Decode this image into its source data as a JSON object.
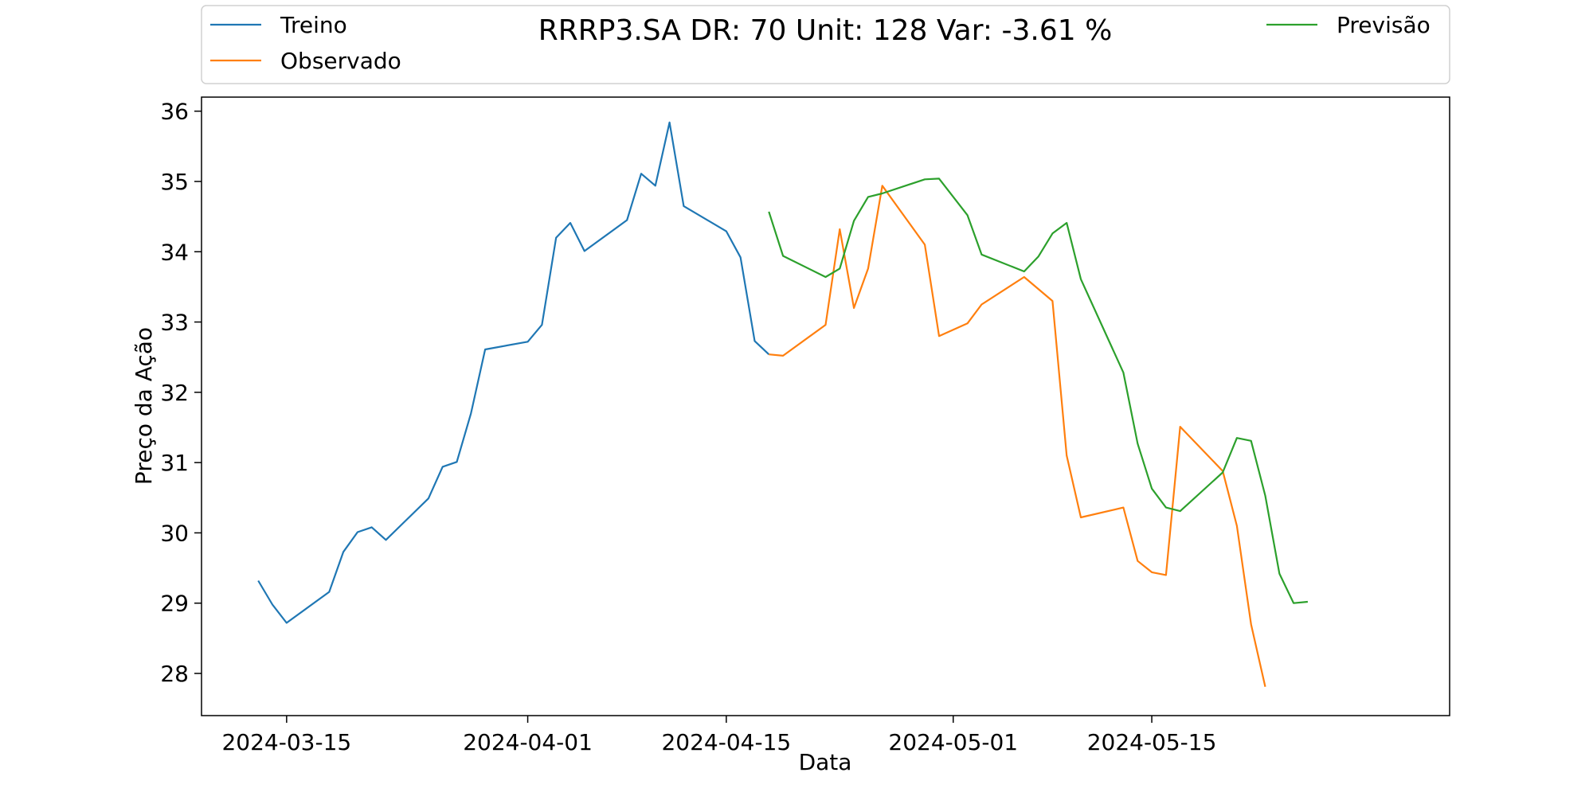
{
  "chart_data": {
    "type": "line",
    "title": "RRRP3.SA DR: 70 Unit: 128 Var: -3.61 %",
    "xlabel": "Data",
    "ylabel": "Preço da Ação",
    "xlim": [
      "2024-03-09",
      "2024-06-05"
    ],
    "ylim": [
      27.4,
      36.2
    ],
    "x_ticks": [
      "2024-03-15",
      "2024-04-01",
      "2024-04-15",
      "2024-05-01",
      "2024-05-15"
    ],
    "y_ticks": [
      28,
      29,
      30,
      31,
      32,
      33,
      34,
      35,
      36
    ],
    "grid": false,
    "legend_position": "top",
    "series": [
      {
        "name": "Treino",
        "color": "#1f77b4",
        "points": [
          [
            "2024-03-13",
            29.32
          ],
          [
            "2024-03-14",
            28.98
          ],
          [
            "2024-03-15",
            28.72
          ],
          [
            "2024-03-18",
            29.16
          ],
          [
            "2024-03-19",
            29.73
          ],
          [
            "2024-03-20",
            30.01
          ],
          [
            "2024-03-21",
            30.08
          ],
          [
            "2024-03-22",
            29.9
          ],
          [
            "2024-03-25",
            30.49
          ],
          [
            "2024-03-26",
            30.94
          ],
          [
            "2024-03-27",
            31.01
          ],
          [
            "2024-03-28",
            31.7
          ],
          [
            "2024-03-29",
            32.61
          ],
          [
            "2024-04-01",
            32.72
          ],
          [
            "2024-04-02",
            32.96
          ],
          [
            "2024-04-03",
            34.2
          ],
          [
            "2024-04-04",
            34.41
          ],
          [
            "2024-04-05",
            34.01
          ],
          [
            "2024-04-08",
            34.45
          ],
          [
            "2024-04-09",
            35.11
          ],
          [
            "2024-04-10",
            34.94
          ],
          [
            "2024-04-11",
            35.84
          ],
          [
            "2024-04-12",
            34.65
          ],
          [
            "2024-04-15",
            34.29
          ],
          [
            "2024-04-16",
            33.92
          ],
          [
            "2024-04-17",
            32.73
          ],
          [
            "2024-04-18",
            32.54
          ]
        ]
      },
      {
        "name": "Observado",
        "color": "#ff7f0e",
        "points": [
          [
            "2024-04-18",
            32.54
          ],
          [
            "2024-04-19",
            32.52
          ],
          [
            "2024-04-22",
            32.96
          ],
          [
            "2024-04-23",
            34.32
          ],
          [
            "2024-04-24",
            33.2
          ],
          [
            "2024-04-25",
            33.76
          ],
          [
            "2024-04-26",
            34.94
          ],
          [
            "2024-04-29",
            34.1
          ],
          [
            "2024-04-30",
            32.8
          ],
          [
            "2024-05-02",
            32.98
          ],
          [
            "2024-05-03",
            33.25
          ],
          [
            "2024-05-06",
            33.64
          ],
          [
            "2024-05-08",
            33.3
          ],
          [
            "2024-05-09",
            31.1
          ],
          [
            "2024-05-10",
            30.22
          ],
          [
            "2024-05-13",
            30.36
          ],
          [
            "2024-05-14",
            29.6
          ],
          [
            "2024-05-15",
            29.44
          ],
          [
            "2024-05-16",
            29.4
          ],
          [
            "2024-05-17",
            31.51
          ],
          [
            "2024-05-20",
            30.88
          ],
          [
            "2024-05-21",
            30.1
          ],
          [
            "2024-05-22",
            28.7
          ],
          [
            "2024-05-23",
            27.81
          ]
        ]
      },
      {
        "name": "Previsão",
        "color": "#2ca02c",
        "points": [
          [
            "2024-04-18",
            34.57
          ],
          [
            "2024-04-19",
            33.94
          ],
          [
            "2024-04-22",
            33.64
          ],
          [
            "2024-04-23",
            33.76
          ],
          [
            "2024-04-24",
            34.44
          ],
          [
            "2024-04-25",
            34.78
          ],
          [
            "2024-04-26",
            34.83
          ],
          [
            "2024-04-29",
            35.03
          ],
          [
            "2024-04-30",
            35.04
          ],
          [
            "2024-05-02",
            34.52
          ],
          [
            "2024-05-03",
            33.96
          ],
          [
            "2024-05-06",
            33.72
          ],
          [
            "2024-05-07",
            33.93
          ],
          [
            "2024-05-08",
            34.26
          ],
          [
            "2024-05-09",
            34.41
          ],
          [
            "2024-05-10",
            33.61
          ],
          [
            "2024-05-13",
            32.28
          ],
          [
            "2024-05-14",
            31.27
          ],
          [
            "2024-05-15",
            30.63
          ],
          [
            "2024-05-16",
            30.36
          ],
          [
            "2024-05-17",
            30.31
          ],
          [
            "2024-05-20",
            30.86
          ],
          [
            "2024-05-21",
            31.35
          ],
          [
            "2024-05-22",
            31.31
          ],
          [
            "2024-05-23",
            30.53
          ],
          [
            "2024-05-24",
            29.42
          ],
          [
            "2024-05-25",
            29.0
          ],
          [
            "2024-05-26",
            29.02
          ]
        ]
      }
    ]
  }
}
